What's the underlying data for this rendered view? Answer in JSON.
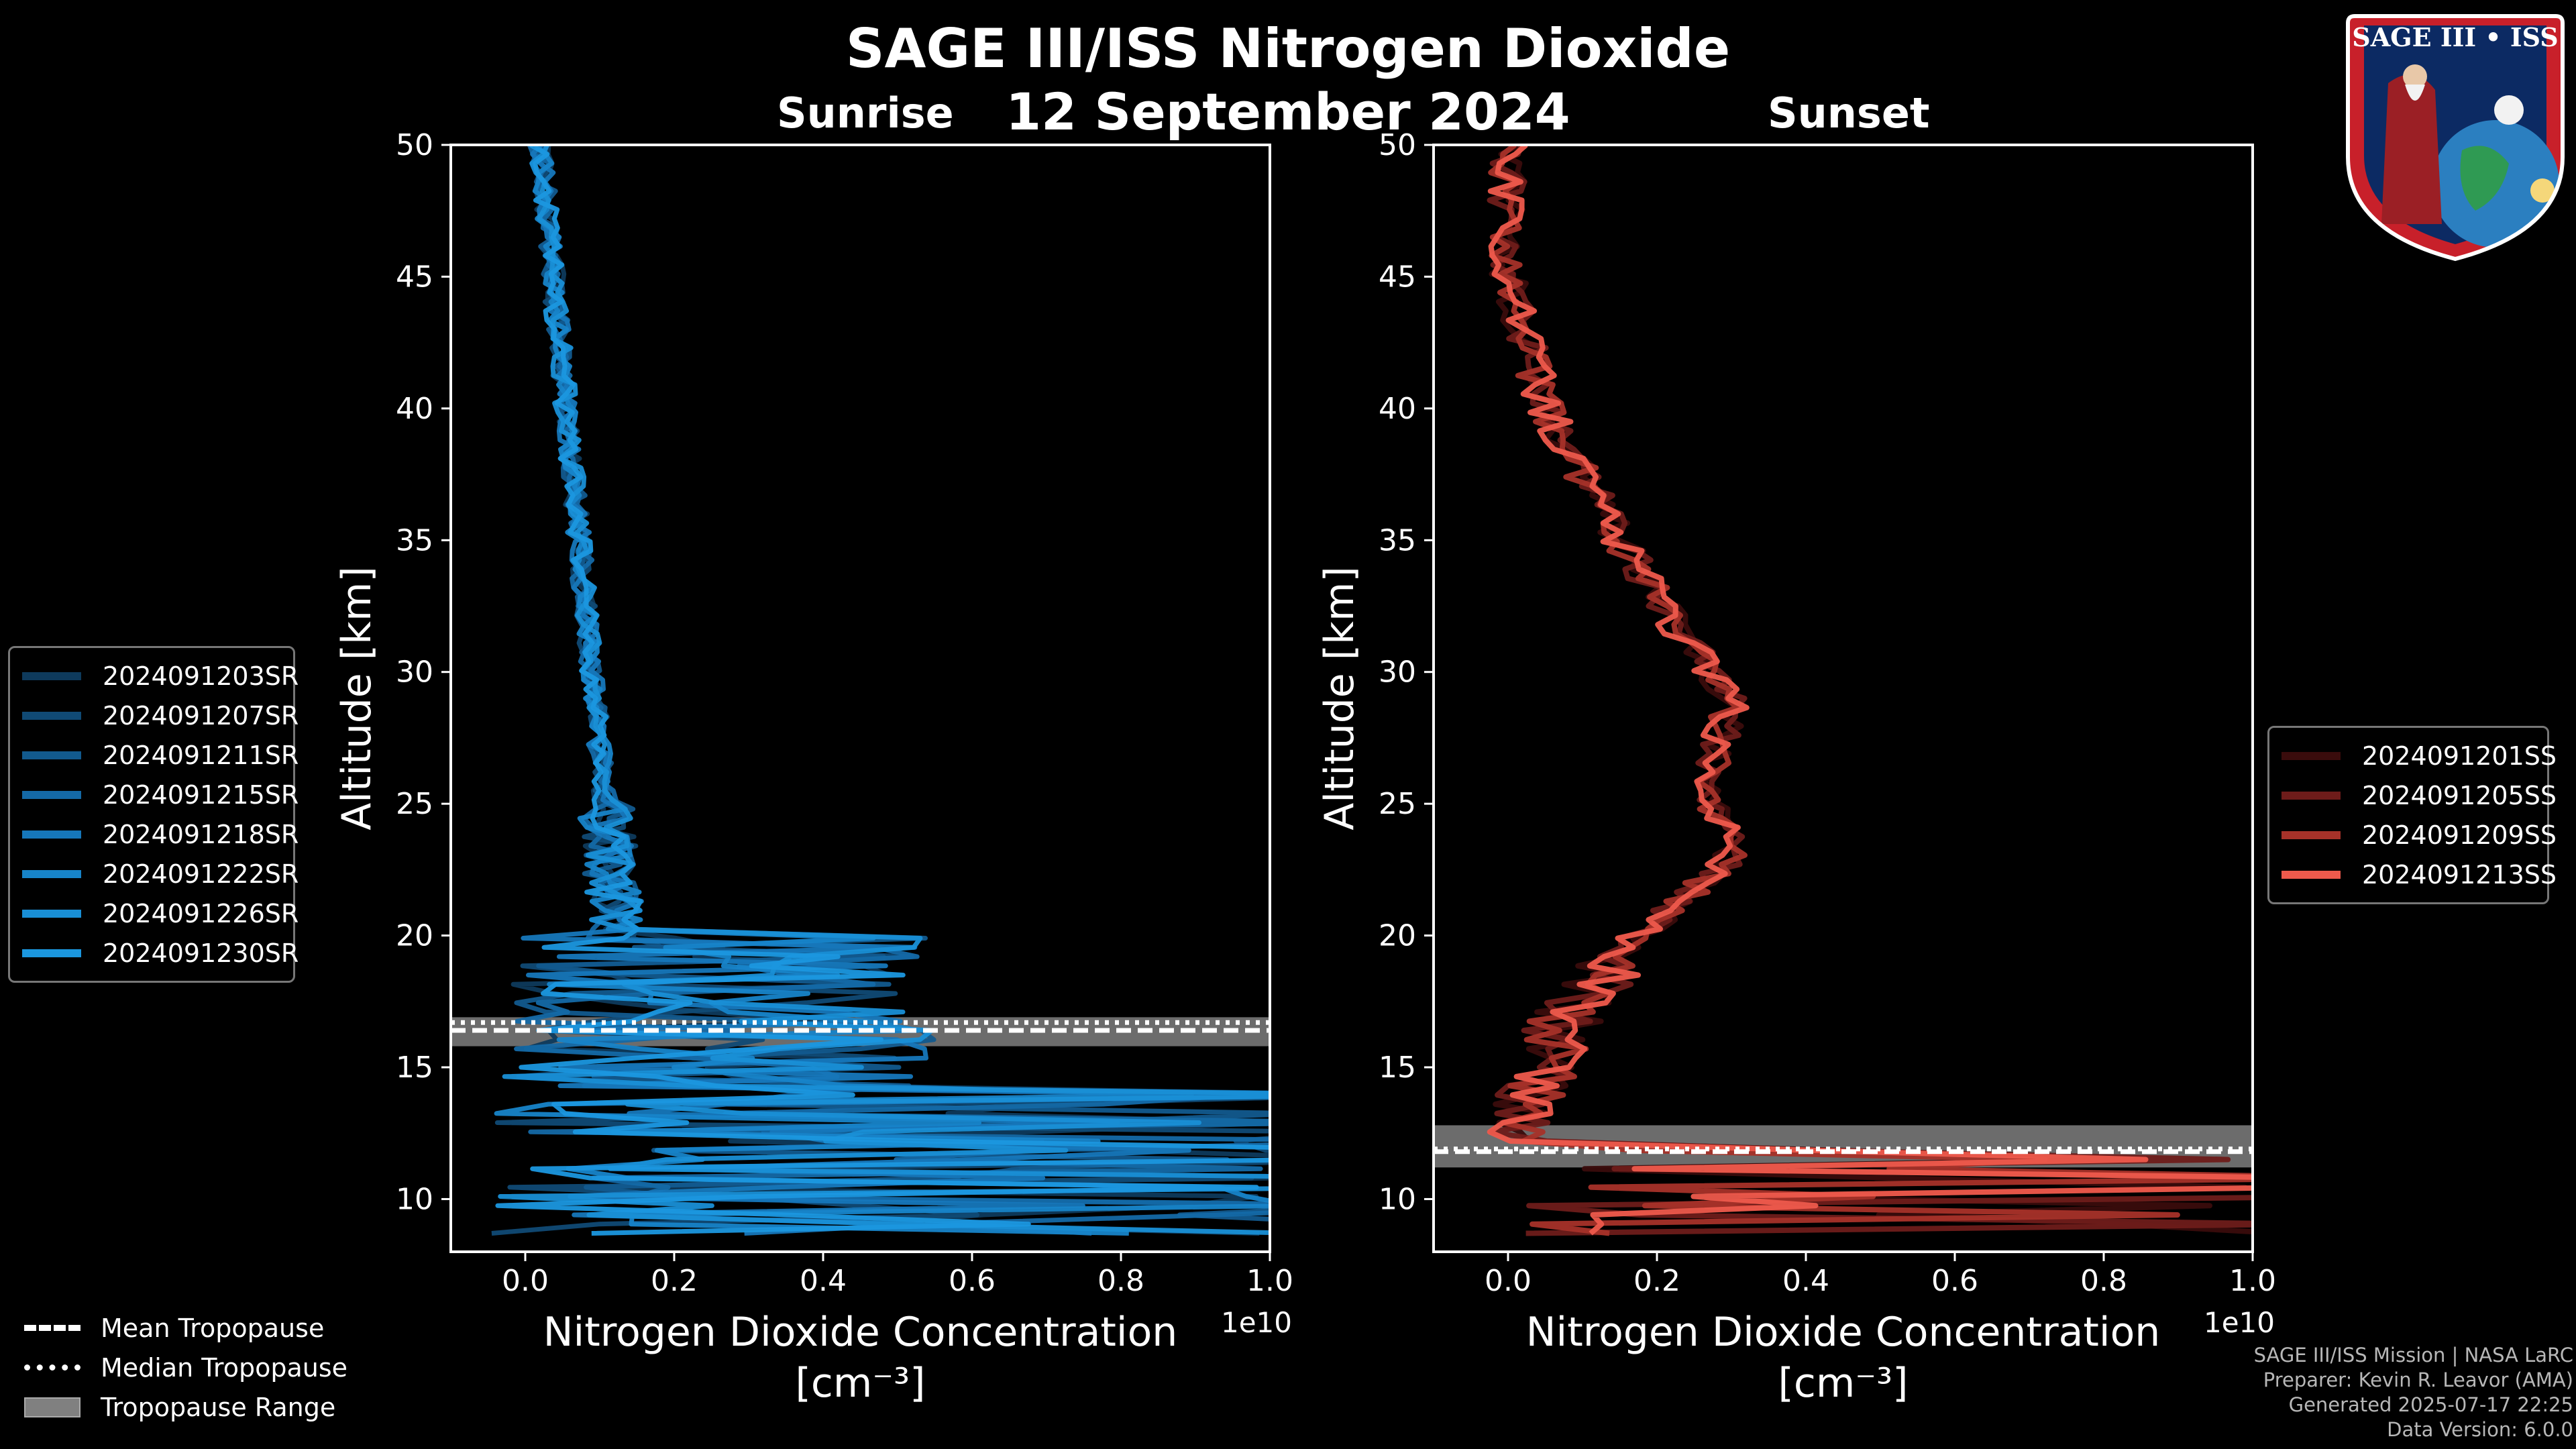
{
  "title": "SAGE III/ISS Nitrogen Dioxide",
  "date": "12 September 2024",
  "chart_data": [
    {
      "type": "line",
      "subtitle": "Sunrise",
      "xlabel": "Nitrogen Dioxide Concentration",
      "xunit": "[cm⁻³]",
      "x_multiplier": "1e10",
      "ylabel": "Altitude [km]",
      "xlim": [
        -0.1,
        1.0
      ],
      "ylim": [
        8,
        50
      ],
      "xticks": [
        "0.0",
        "0.2",
        "0.4",
        "0.6",
        "0.8",
        "1.0"
      ],
      "yticks": [
        "10",
        "15",
        "20",
        "25",
        "30",
        "35",
        "40",
        "45",
        "50"
      ],
      "tropopause": {
        "mean": 16.4,
        "median": 16.7,
        "range": [
          15.8,
          16.9
        ]
      },
      "series": [
        {
          "name": "2024091203SR",
          "color": "#0e3a5c"
        },
        {
          "name": "2024091207SR",
          "color": "#104a75"
        },
        {
          "name": "2024091211SR",
          "color": "#125a8e"
        },
        {
          "name": "2024091215SR",
          "color": "#1469a6"
        },
        {
          "name": "2024091218SR",
          "color": "#1677ba"
        },
        {
          "name": "2024091222SR",
          "color": "#1784c9"
        },
        {
          "name": "2024091226SR",
          "color": "#198fd6"
        },
        {
          "name": "2024091230SR",
          "color": "#1b97df"
        }
      ]
    },
    {
      "type": "line",
      "subtitle": "Sunset",
      "xlabel": "Nitrogen Dioxide Concentration",
      "xunit": "[cm⁻³]",
      "x_multiplier": "1e10",
      "ylabel": "Altitude [km]",
      "xlim": [
        -0.1,
        1.0
      ],
      "ylim": [
        8,
        50
      ],
      "xticks": [
        "0.0",
        "0.2",
        "0.4",
        "0.6",
        "0.8",
        "1.0"
      ],
      "yticks": [
        "10",
        "15",
        "20",
        "25",
        "30",
        "35",
        "40",
        "45",
        "50"
      ],
      "tropopause": {
        "mean": 11.8,
        "median": 11.9,
        "range": [
          11.2,
          12.8
        ]
      },
      "series": [
        {
          "name": "2024091201SS",
          "color": "#3a0c0c"
        },
        {
          "name": "2024091205SS",
          "color": "#6e1c1a"
        },
        {
          "name": "2024091209SS",
          "color": "#a63229"
        },
        {
          "name": "2024091213SS",
          "color": "#ee5a4c"
        }
      ]
    }
  ],
  "bottom_legend": [
    {
      "label": "Mean Tropopause",
      "style": "dashed"
    },
    {
      "label": "Median Tropopause",
      "style": "dotted"
    },
    {
      "label": "Tropopause Range",
      "style": "box"
    }
  ],
  "credits": [
    "SAGE III/ISS Mission | NASA LaRC",
    "Preparer: Kevin R. Leavor (AMA)",
    "Generated 2025-07-17 22:25",
    "Data Version: 6.0.0"
  ],
  "logo": {
    "text": "SAGE III • ISS",
    "name": "sage-iii-iss-mission-logo"
  }
}
